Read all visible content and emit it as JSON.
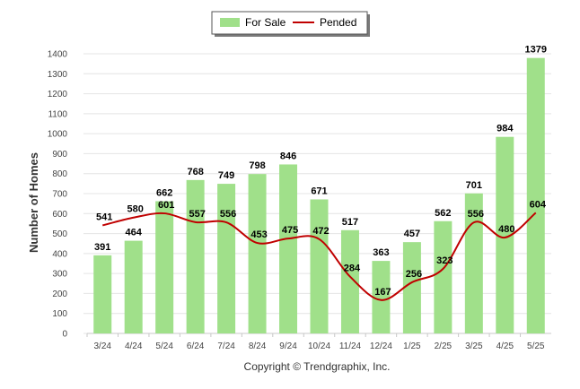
{
  "chart_data": {
    "type": "bar",
    "categories": [
      "3/24",
      "4/24",
      "5/24",
      "6/24",
      "7/24",
      "8/24",
      "9/24",
      "10/24",
      "11/24",
      "12/24",
      "1/25",
      "2/25",
      "3/25",
      "4/25",
      "5/25"
    ],
    "series": [
      {
        "name": "For Sale",
        "type": "bar",
        "color": "#a0e08a",
        "values": [
          391,
          464,
          662,
          768,
          749,
          798,
          846,
          671,
          517,
          363,
          457,
          562,
          701,
          984,
          1379
        ]
      },
      {
        "name": "Pended",
        "type": "line",
        "color": "#c00000",
        "values": [
          541,
          580,
          601,
          557,
          556,
          453,
          475,
          472,
          284,
          167,
          256,
          323,
          556,
          480,
          604
        ]
      }
    ],
    "ylabel": "Number of Homes",
    "xlabel": "",
    "ylim": [
      0,
      1400
    ],
    "yticks": [
      0,
      100,
      200,
      300,
      400,
      500,
      600,
      700,
      800,
      900,
      1000,
      1100,
      1200,
      1300,
      1400
    ],
    "grid": true,
    "legend_position": "top-center"
  },
  "footer": {
    "copyright": "Copyright © Trendgraphix, Inc."
  }
}
